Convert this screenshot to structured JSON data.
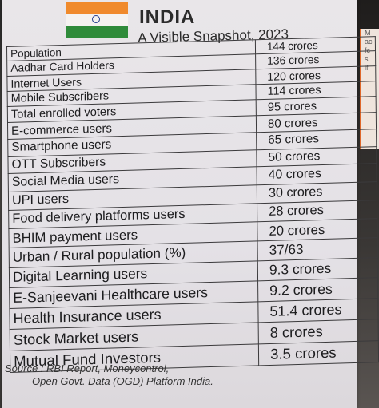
{
  "header": {
    "title": "INDIA",
    "subtitle": "A Visible Snapshot, 2023"
  },
  "side_card": {
    "letters": [
      "M",
      "ac",
      "fc",
      "s",
      "if"
    ]
  },
  "rows": [
    {
      "label": "Population",
      "value": "144 crores"
    },
    {
      "label": "Aadhar Card Holders",
      "value": "136 crores"
    },
    {
      "label": "Internet Users",
      "value": "120 crores"
    },
    {
      "label": "Mobile Subscribers",
      "value": "114 crores"
    },
    {
      "label": "Total enrolled voters",
      "value": "95 crores"
    },
    {
      "label": "E-commerce users",
      "value": "80 crores"
    },
    {
      "label": "Smartphone users",
      "value": "65 crores"
    },
    {
      "label": "OTT Subscribers",
      "value": "50 crores"
    },
    {
      "label": "Social Media users",
      "value": "40 crores"
    },
    {
      "label": "UPI users",
      "value": "30 crores"
    },
    {
      "label": "Food delivery platforms users",
      "value": "28 crores"
    },
    {
      "label": "BHIM payment users",
      "value": "20 crores"
    },
    {
      "label": "Urban / Rural population (%)",
      "value": "37/63"
    },
    {
      "label": "Digital Learning users",
      "value": "9.3 crores"
    },
    {
      "label": "E-Sanjeevani Healthcare users",
      "value": "9.2 crores"
    },
    {
      "label": "Health Insurance users",
      "value": "51.4 crores"
    },
    {
      "label": "Stock Market users",
      "value": "8 crores"
    },
    {
      "label": "Mutual Fund Investors",
      "value": "3.5 crores"
    }
  ],
  "source": {
    "line1": "Source : RBI Report, Moneycontrol,",
    "line2": "Open Govt. Data (OGD) Platform India."
  }
}
